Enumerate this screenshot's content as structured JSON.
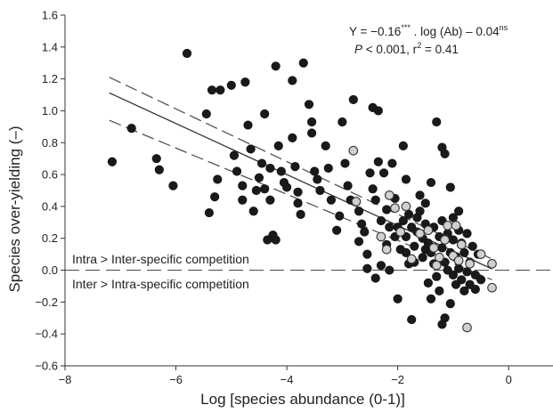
{
  "chart_data": {
    "type": "scatter",
    "title": "",
    "xlabel": "Log [species abundance (0-1)]",
    "ylabel": "Species over-yielding (–)",
    "xlim": [
      -8,
      0.8
    ],
    "ylim": [
      -0.6,
      1.6
    ],
    "x_ticks": [
      -8,
      -6,
      -4,
      -2,
      0
    ],
    "x_tick_labels": [
      "−8",
      "−6",
      "−4",
      "−2",
      "0"
    ],
    "y_ticks": [
      -0.6,
      -0.4,
      -0.2,
      0.0,
      0.2,
      0.4,
      0.6,
      0.8,
      1.0,
      1.2,
      1.4,
      1.6
    ],
    "y_tick_labels": [
      "−0.6",
      "−0.4",
      "−0.2",
      "0.0",
      "0.2",
      "0.4",
      "0.6",
      "0.8",
      "1.0",
      "1.2",
      "1.4",
      "1.6"
    ],
    "grid": false,
    "colors": {
      "dark_points": "#1a1a1a",
      "light_points": "#d0d0d0",
      "fit_line": "#333333",
      "ci_lines": "#555555",
      "reference_line": "#555555"
    },
    "equation": {
      "prefix": "Y = −0.16",
      "sup1": "***",
      "middle": " . log (Ab) – 0.04",
      "sup2": "ns"
    },
    "stats": {
      "p_label": "P",
      "p_rest": " < 0.001, r",
      "r_sup": "2",
      "r_rest": " = 0.41"
    },
    "reference_line": {
      "y": 0.0,
      "label_above": "Intra > Inter-specific competition",
      "label_below": "Inter > Intra-specific competition"
    },
    "fit": {
      "slope": -0.16,
      "intercept": -0.04,
      "x_range": [
        -7.2,
        -0.3
      ],
      "ci_upper": [
        [
          -7.2,
          1.21
        ],
        [
          -0.3,
          0.07
        ]
      ],
      "ci_lower": [
        [
          -7.2,
          0.94
        ],
        [
          -0.3,
          -0.06
        ]
      ]
    },
    "series": [
      {
        "style": "dark",
        "points": [
          [
            -7.15,
            0.68
          ],
          [
            -6.8,
            0.89
          ],
          [
            -6.35,
            0.7
          ],
          [
            -6.3,
            0.63
          ],
          [
            -6.05,
            0.53
          ],
          [
            -5.8,
            1.36
          ],
          [
            -5.45,
            0.98
          ],
          [
            -5.35,
            1.13
          ],
          [
            -5.25,
            0.57
          ],
          [
            -5.3,
            0.46
          ],
          [
            -5.4,
            0.36
          ],
          [
            -5.2,
            1.13
          ],
          [
            -5.0,
            1.16
          ],
          [
            -4.95,
            0.72
          ],
          [
            -4.9,
            0.62
          ],
          [
            -4.8,
            0.44
          ],
          [
            -4.8,
            0.53
          ],
          [
            -4.75,
            1.18
          ],
          [
            -4.7,
            0.91
          ],
          [
            -4.65,
            0.76
          ],
          [
            -4.6,
            0.37
          ],
          [
            -4.55,
            0.5
          ],
          [
            -4.5,
            0.58
          ],
          [
            -4.45,
            0.67
          ],
          [
            -4.4,
            0.98
          ],
          [
            -4.4,
            0.51
          ],
          [
            -4.35,
            0.19
          ],
          [
            -4.3,
            0.64
          ],
          [
            -4.3,
            0.44
          ],
          [
            -4.25,
            0.22
          ],
          [
            -4.2,
            1.28
          ],
          [
            -4.2,
            0.19
          ],
          [
            -4.15,
            0.78
          ],
          [
            -4.1,
            0.62
          ],
          [
            -4.05,
            0.55
          ],
          [
            -4.0,
            0.52
          ],
          [
            -3.9,
            1.19
          ],
          [
            -3.9,
            0.83
          ],
          [
            -3.85,
            0.65
          ],
          [
            -3.8,
            0.49
          ],
          [
            -3.8,
            0.42
          ],
          [
            -3.75,
            0.35
          ],
          [
            -3.7,
            1.3
          ],
          [
            -3.6,
            1.04
          ],
          [
            -3.55,
            0.93
          ],
          [
            -3.5,
            0.62
          ],
          [
            -3.45,
            0.57
          ],
          [
            -3.4,
            0.5
          ],
          [
            -3.3,
            0.78
          ],
          [
            -3.25,
            0.64
          ],
          [
            -3.2,
            0.44
          ],
          [
            -3.1,
            0.25
          ],
          [
            -3.05,
            0.34
          ],
          [
            -3.0,
            0.93
          ],
          [
            -2.95,
            0.67
          ],
          [
            -2.9,
            0.53
          ],
          [
            -2.85,
            0.44
          ],
          [
            -2.8,
            1.07
          ],
          [
            -2.7,
            0.37
          ],
          [
            -2.7,
            0.18
          ],
          [
            -2.65,
            0.29
          ],
          [
            -2.6,
            0.24
          ],
          [
            -2.55,
            0.01
          ],
          [
            -2.5,
            0.61
          ],
          [
            -2.45,
            0.51
          ],
          [
            -2.4,
            0.44
          ],
          [
            -2.35,
            1.0
          ],
          [
            -2.35,
            0.68
          ],
          [
            -2.3,
            0.31
          ],
          [
            -2.3,
            0.21
          ],
          [
            -2.3,
            0.03
          ],
          [
            -2.25,
            0.61
          ],
          [
            -2.2,
            0.38
          ],
          [
            -2.2,
            0.16
          ],
          [
            -2.15,
            0.0
          ],
          [
            -2.1,
            0.67
          ],
          [
            -2.05,
            0.45
          ],
          [
            -2.05,
            0.21
          ],
          [
            -2.0,
            0.27
          ],
          [
            -1.95,
            0.13
          ],
          [
            -1.9,
            0.78
          ],
          [
            -1.9,
            0.31
          ],
          [
            -1.85,
            0.57
          ],
          [
            -1.85,
            0.11
          ],
          [
            -1.8,
            0.35
          ],
          [
            -1.8,
            0.04
          ],
          [
            -1.75,
            0.27
          ],
          [
            -1.7,
            0.15
          ],
          [
            -1.7,
            0.05
          ],
          [
            -1.65,
            0.24
          ],
          [
            -1.6,
            0.47
          ],
          [
            -1.6,
            0.37
          ],
          [
            -1.55,
            0.2
          ],
          [
            -1.55,
            0.08
          ],
          [
            -1.5,
            0.29
          ],
          [
            -1.5,
            0.13
          ],
          [
            -1.45,
            0.17
          ],
          [
            -1.45,
            -0.08
          ],
          [
            -1.4,
            0.11
          ],
          [
            -1.4,
            -0.18
          ],
          [
            -1.35,
            0.27
          ],
          [
            -1.35,
            0.04
          ],
          [
            -1.3,
            0.93
          ],
          [
            -1.3,
            -0.04
          ],
          [
            -1.25,
            0.21
          ],
          [
            -1.25,
            -0.13
          ],
          [
            -1.2,
            0.31
          ],
          [
            -1.2,
            0.14
          ],
          [
            -1.15,
            0.05
          ],
          [
            -1.15,
            -0.3
          ],
          [
            -1.1,
            0.23
          ],
          [
            -1.1,
            0.0
          ],
          [
            -1.05,
            0.11
          ],
          [
            -1.05,
            -0.21
          ],
          [
            -1.0,
            0.33
          ],
          [
            -1.0,
            0.19
          ],
          [
            -0.95,
            0.08
          ],
          [
            -0.95,
            -0.09
          ],
          [
            -0.9,
            0.25
          ],
          [
            -0.9,
            0.01
          ],
          [
            -0.85,
            0.17
          ],
          [
            -0.85,
            -0.06
          ],
          [
            -0.8,
            0.11
          ],
          [
            -0.8,
            -0.13
          ],
          [
            -0.75,
            0.23
          ],
          [
            -0.75,
            -0.01
          ],
          [
            -0.7,
            0.05
          ],
          [
            -0.7,
            -0.09
          ],
          [
            -0.65,
            0.15
          ],
          [
            -0.6,
            -0.03
          ],
          [
            -0.55,
            0.1
          ],
          [
            -0.5,
            -0.06
          ],
          [
            -2.0,
            -0.18
          ],
          [
            -1.75,
            -0.31
          ],
          [
            -1.2,
            -0.34
          ],
          [
            -1.15,
            0.73
          ],
          [
            -1.2,
            0.77
          ],
          [
            -1.0,
            -0.03
          ],
          [
            -0.6,
            -0.12
          ],
          [
            -1.4,
            0.55
          ],
          [
            -1.5,
            0.42
          ],
          [
            -1.05,
            0.52
          ],
          [
            -0.9,
            0.37
          ],
          [
            -2.55,
            0.1
          ],
          [
            -1.85,
            0.21
          ],
          [
            -2.15,
            0.27
          ],
          [
            -2.4,
            -0.05
          ],
          [
            -3.55,
            0.86
          ],
          [
            -2.45,
            1.02
          ],
          [
            -1.65,
            0.33
          ]
        ]
      },
      {
        "style": "light",
        "points": [
          [
            -2.8,
            0.75
          ],
          [
            -2.75,
            0.43
          ],
          [
            -2.3,
            0.21
          ],
          [
            -2.2,
            0.13
          ],
          [
            -2.15,
            0.47
          ],
          [
            -2.05,
            0.39
          ],
          [
            -1.95,
            0.24
          ],
          [
            -1.85,
            0.4
          ],
          [
            -1.75,
            0.07
          ],
          [
            -1.6,
            0.23
          ],
          [
            -1.45,
            0.25
          ],
          [
            -1.35,
            0.14
          ],
          [
            -1.3,
            0.03
          ],
          [
            -1.25,
            0.08
          ],
          [
            -1.1,
            0.28
          ],
          [
            -1.0,
            0.09
          ],
          [
            -0.95,
            0.28
          ],
          [
            -0.85,
            0.16
          ],
          [
            -0.7,
            0.04
          ],
          [
            -0.75,
            -0.36
          ],
          [
            -0.5,
            0.1
          ],
          [
            -0.3,
            0.04
          ],
          [
            -0.3,
            -0.11
          ],
          [
            -1.15,
            0.19
          ],
          [
            -0.9,
            0.06
          ]
        ]
      }
    ]
  }
}
